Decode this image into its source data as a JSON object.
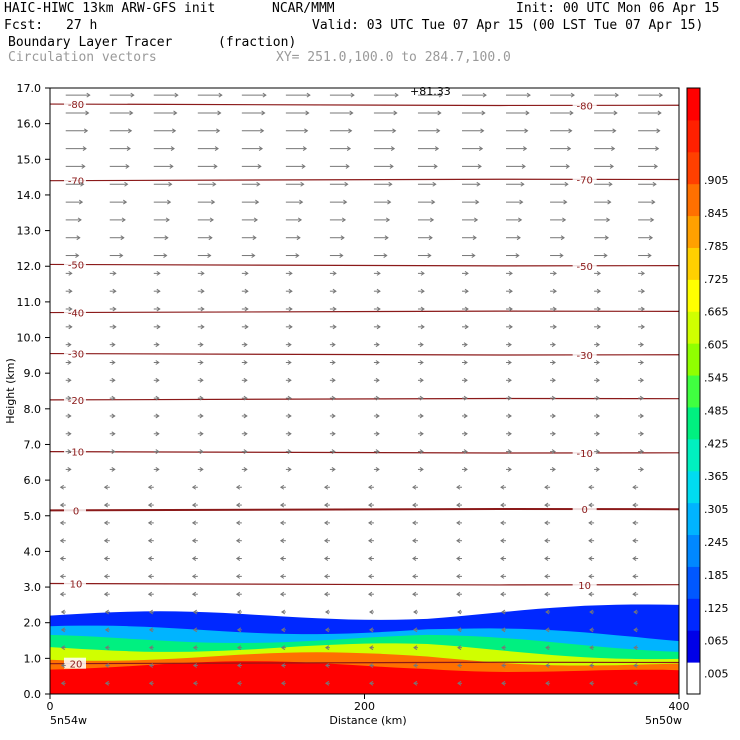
{
  "header": {
    "model": "HAIC-HIWC 13km ARW-GFS init",
    "org": "NCAR/MMM",
    "init": "Init: 00 UTC Mon 06 Apr 15",
    "fcst_label": "Fcst:",
    "fcst_value": "27 h",
    "valid": "Valid: 03 UTC Tue 07 Apr 15 (00 LST Tue 07 Apr 15)",
    "field": "Boundary Layer Tracer",
    "units": "(fraction)",
    "vectors": "Circulation vectors",
    "xy": "XY= 251.0,100.0 to 284.7,100.0"
  },
  "chart_data": {
    "type": "heatmap",
    "title": "Boundary Layer Tracer",
    "xlabel": "Distance (km)",
    "ylabel": "Height (km)",
    "xlim": [
      0,
      400
    ],
    "ylim": [
      0,
      17
    ],
    "x_ticks": [
      "0",
      "200",
      "400"
    ],
    "y_ticks": [
      "0.0",
      "1.0",
      "2.0",
      "3.0",
      "4.0",
      "5.0",
      "6.0",
      "7.0",
      "8.0",
      "9.0",
      "10.0",
      "11.0",
      "12.0",
      "13.0",
      "14.0",
      "15.0",
      "16.0",
      "17.0"
    ],
    "x_end_labels": {
      "left": "5n54w",
      "right": "5n50w"
    },
    "top_annotation": "+81.33",
    "colorbar": {
      "labels": [
        ".005",
        ".065",
        ".125",
        ".185",
        ".245",
        ".305",
        ".365",
        ".425",
        ".485",
        ".545",
        ".605",
        ".665",
        ".725",
        ".785",
        ".845",
        ".905"
      ],
      "colors": [
        "#ffffff",
        "#0000e8",
        "#0028ff",
        "#0058ff",
        "#0088ff",
        "#00b4ff",
        "#00dcf0",
        "#00f0c0",
        "#00f080",
        "#40ff40",
        "#90ff00",
        "#d0ff00",
        "#ffff00",
        "#ffd000",
        "#ffa000",
        "#ff7000",
        "#ff4000",
        "#ff2000",
        "#ff0000"
      ]
    },
    "tracer_layers": [
      {
        "value": 0.905,
        "top_km": 0.8
      },
      {
        "value": 0.725,
        "top_km": 1.05
      },
      {
        "value": 0.545,
        "top_km": 1.3
      },
      {
        "value": 0.365,
        "top_km": 1.55
      },
      {
        "value": 0.185,
        "top_km": 1.8
      },
      {
        "value": 0.065,
        "top_km": 2.2
      }
    ],
    "isotherms_C": [
      {
        "label": "20",
        "height_km": 0.85
      },
      {
        "label": "10",
        "height_km": 3.1
      },
      {
        "label": "0",
        "height_km": 5.15
      },
      {
        "label": "-10",
        "height_km": 6.8
      },
      {
        "label": "-20",
        "height_km": 8.25
      },
      {
        "label": "-30",
        "height_km": 9.55
      },
      {
        "label": "-40",
        "height_km": 10.7
      },
      {
        "label": "-50",
        "height_km": 12.05
      },
      {
        "label": "-70",
        "height_km": 14.4
      },
      {
        "label": "-80",
        "height_km": 16.55
      }
    ],
    "grid": false,
    "legend": "colorbar-right"
  }
}
